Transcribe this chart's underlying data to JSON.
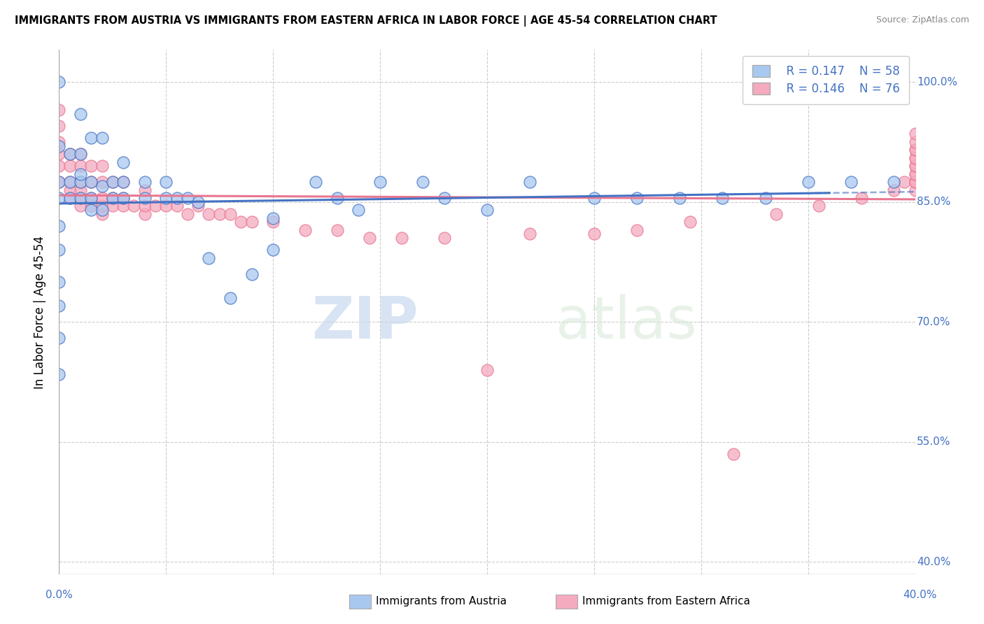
{
  "title": "IMMIGRANTS FROM AUSTRIA VS IMMIGRANTS FROM EASTERN AFRICA IN LABOR FORCE | AGE 45-54 CORRELATION CHART",
  "source": "Source: ZipAtlas.com",
  "ylabel": "In Labor Force | Age 45-54",
  "ytick_labels": [
    "40.0%",
    "55.0%",
    "70.0%",
    "85.0%",
    "100.0%"
  ],
  "ytick_values": [
    0.4,
    0.55,
    0.7,
    0.85,
    1.0
  ],
  "xlim": [
    0.0,
    0.4
  ],
  "ylim": [
    0.385,
    1.04
  ],
  "legend_r_austria": "R = 0.147",
  "legend_n_austria": "N = 58",
  "legend_r_eastern_africa": "R = 0.146",
  "legend_n_eastern_africa": "N = 76",
  "color_austria": "#A8C8F0",
  "color_eastern_africa": "#F4AABF",
  "color_trendline_austria": "#4472C4",
  "color_trendline_eastern_africa": "#E87690",
  "watermark_zip": "ZIP",
  "watermark_atlas": "atlas",
  "austria_x": [
    0.0,
    0.0,
    0.0,
    0.0,
    0.0,
    0.0,
    0.0,
    0.0,
    0.0,
    0.0,
    0.005,
    0.005,
    0.005,
    0.01,
    0.01,
    0.01,
    0.01,
    0.01,
    0.015,
    0.015,
    0.015,
    0.015,
    0.02,
    0.02,
    0.02,
    0.025,
    0.025,
    0.03,
    0.03,
    0.03,
    0.04,
    0.04,
    0.05,
    0.05,
    0.055,
    0.06,
    0.065,
    0.07,
    0.08,
    0.09,
    0.1,
    0.1,
    0.12,
    0.13,
    0.14,
    0.15,
    0.17,
    0.18,
    0.2,
    0.22,
    0.25,
    0.27,
    0.29,
    0.31,
    0.33,
    0.35,
    0.37,
    0.39
  ],
  "austria_y": [
    0.635,
    0.68,
    0.72,
    0.75,
    0.79,
    0.82,
    0.855,
    0.875,
    0.92,
    1.0,
    0.855,
    0.875,
    0.91,
    0.855,
    0.875,
    0.885,
    0.91,
    0.96,
    0.84,
    0.855,
    0.875,
    0.93,
    0.84,
    0.87,
    0.93,
    0.855,
    0.875,
    0.855,
    0.875,
    0.9,
    0.855,
    0.875,
    0.855,
    0.875,
    0.855,
    0.855,
    0.85,
    0.78,
    0.73,
    0.76,
    0.79,
    0.83,
    0.875,
    0.855,
    0.84,
    0.875,
    0.875,
    0.855,
    0.84,
    0.875,
    0.855,
    0.855,
    0.855,
    0.855,
    0.855,
    0.875,
    0.875,
    0.875
  ],
  "eastern_africa_x": [
    0.0,
    0.0,
    0.0,
    0.0,
    0.0,
    0.0,
    0.005,
    0.005,
    0.005,
    0.005,
    0.005,
    0.01,
    0.01,
    0.01,
    0.01,
    0.01,
    0.01,
    0.015,
    0.015,
    0.015,
    0.015,
    0.02,
    0.02,
    0.02,
    0.02,
    0.02,
    0.025,
    0.025,
    0.025,
    0.03,
    0.03,
    0.03,
    0.035,
    0.04,
    0.04,
    0.04,
    0.045,
    0.05,
    0.055,
    0.06,
    0.065,
    0.07,
    0.075,
    0.08,
    0.085,
    0.09,
    0.1,
    0.115,
    0.13,
    0.145,
    0.16,
    0.18,
    0.2,
    0.22,
    0.25,
    0.27,
    0.295,
    0.315,
    0.335,
    0.355,
    0.375,
    0.39,
    0.395,
    0.4,
    0.4,
    0.4,
    0.4,
    0.4,
    0.4,
    0.4,
    0.4,
    0.4,
    0.4,
    0.4,
    0.4,
    0.4
  ],
  "eastern_africa_y": [
    0.875,
    0.895,
    0.91,
    0.925,
    0.945,
    0.965,
    0.855,
    0.865,
    0.875,
    0.895,
    0.91,
    0.845,
    0.855,
    0.865,
    0.875,
    0.895,
    0.91,
    0.845,
    0.855,
    0.875,
    0.895,
    0.835,
    0.845,
    0.855,
    0.875,
    0.895,
    0.845,
    0.855,
    0.875,
    0.845,
    0.855,
    0.875,
    0.845,
    0.835,
    0.845,
    0.865,
    0.845,
    0.845,
    0.845,
    0.835,
    0.845,
    0.835,
    0.835,
    0.835,
    0.825,
    0.825,
    0.825,
    0.815,
    0.815,
    0.805,
    0.805,
    0.805,
    0.64,
    0.81,
    0.81,
    0.815,
    0.825,
    0.535,
    0.835,
    0.845,
    0.855,
    0.865,
    0.875,
    0.865,
    0.875,
    0.875,
    0.885,
    0.885,
    0.895,
    0.895,
    0.905,
    0.905,
    0.915,
    0.915,
    0.925,
    0.935
  ]
}
